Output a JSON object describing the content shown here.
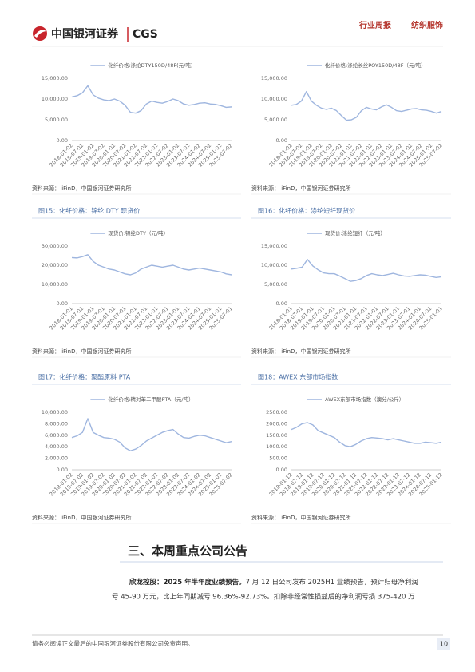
{
  "header": {
    "logo_text": "中国银河证券",
    "logo_code": "CGS",
    "report_type": "行业周报",
    "sector": "纺织服饰"
  },
  "chart_data": [
    {
      "type": "line",
      "series": [
        {
          "name": "化纤价格:涤纶DTY150D/48F(元/吨)",
          "color": "#9fb6df",
          "values": [
            10500,
            10800,
            11500,
            13200,
            11000,
            10200,
            9800,
            9600,
            10000,
            9500,
            8500,
            6800,
            6600,
            7200,
            8800,
            9500,
            9200,
            9000,
            9400,
            10000,
            9600,
            8800,
            8500,
            8700,
            9000,
            9100,
            8800,
            8700,
            8400,
            8000,
            8100
          ]
        }
      ],
      "categories": [
        "2018-01-02",
        null,
        "2018-07-02",
        null,
        "2019-01-02",
        null,
        "2019-07-02",
        null,
        "2020-01-02",
        null,
        "2020-07-02",
        null,
        "2021-01-02",
        null,
        "2021-07-02",
        null,
        "2022-01-02",
        null,
        "2022-07-02",
        null,
        "2023-01-02",
        null,
        "2023-07-02",
        null,
        "2024-01-02",
        null,
        "2024-07-02",
        null,
        "2025-01-02",
        null,
        "2025-07-02"
      ],
      "ylim": [
        0,
        15000
      ],
      "yticks": [
        {
          "value": 0,
          "label": "0.00"
        },
        {
          "value": 5000,
          "label": "5,000.00"
        },
        {
          "value": 10000,
          "label": "10,000.00"
        },
        {
          "value": 15000,
          "label": "15,000.00"
        }
      ],
      "grid": false,
      "source": "资料来源： iFinD，中国银河证券研究所"
    },
    {
      "type": "line",
      "series": [
        {
          "name": "化纤价格:涤纶长丝POY150D/48F（元/吨）",
          "color": "#9fb6df",
          "values": [
            8500,
            8700,
            9500,
            11800,
            9500,
            8500,
            7800,
            7500,
            7800,
            7200,
            6000,
            4900,
            5000,
            5600,
            7200,
            8000,
            7600,
            7400,
            8100,
            8600,
            8000,
            7200,
            7000,
            7300,
            7600,
            7700,
            7400,
            7300,
            7000,
            6600,
            7000
          ]
        }
      ],
      "categories": [
        "2018-01-02",
        null,
        "2018-07-02",
        null,
        "2019-01-02",
        null,
        "2019-07-02",
        null,
        "2020-01-02",
        null,
        "2020-07-02",
        null,
        "2021-01-02",
        null,
        "2021-07-02",
        null,
        "2022-01-02",
        null,
        "2022-07-02",
        null,
        "2023-01-02",
        null,
        "2023-07-02",
        null,
        "2024-01-02",
        null,
        "2024-07-02",
        null,
        "2025-01-02",
        null,
        "2025-07-02"
      ],
      "ylim": [
        0,
        15000
      ],
      "yticks": [
        {
          "value": 0,
          "label": "0.00"
        },
        {
          "value": 5000,
          "label": "5,000.00"
        },
        {
          "value": 10000,
          "label": "10,000.00"
        },
        {
          "value": 15000,
          "label": "15,000.00"
        }
      ],
      "grid": false,
      "source": "资料来源： iFinD，中国银河证券研究所"
    },
    {
      "type": "line",
      "title": "图15：化纤价格：锦纶 DTY 现货价",
      "series": [
        {
          "name": "现货价:锦纶DTY（元/吨）",
          "color": "#9fb6df",
          "values": [
            24000,
            23800,
            24500,
            25500,
            22000,
            20000,
            19000,
            18000,
            17500,
            16500,
            15500,
            15000,
            16000,
            18000,
            19000,
            20000,
            19500,
            19000,
            19500,
            20000,
            19000,
            18000,
            17500,
            18000,
            18500,
            18000,
            17500,
            17000,
            16500,
            15500,
            15000
          ]
        }
      ],
      "categories": [
        "2018-01-01",
        null,
        "2018-07-01",
        null,
        "2019-01-01",
        null,
        "2019-07-01",
        null,
        "2020-01-01",
        null,
        "2020-07-01",
        null,
        "2021-01-01",
        null,
        "2021-07-01",
        null,
        "2022-01-01",
        null,
        "2022-07-01",
        null,
        "2023-01-01",
        null,
        "2023-07-01",
        null,
        "2024-01-01",
        null,
        "2024-07-01",
        null,
        "2025-01-01",
        null,
        "2025-07-01"
      ],
      "ylim": [
        0,
        30000
      ],
      "yticks": [
        {
          "value": 0,
          "label": "0.00"
        },
        {
          "value": 10000,
          "label": "10,000.00"
        },
        {
          "value": 20000,
          "label": "20,000.00"
        },
        {
          "value": 30000,
          "label": "30,000.00"
        }
      ],
      "grid": false,
      "source": "资料来源： iFinD，中国银河证券研究所"
    },
    {
      "type": "line",
      "title": "图16：化纤价格：涤纶短纤现货价",
      "series": [
        {
          "name": "现货价:涤纶短纤（元/吨）",
          "color": "#9fb6df",
          "values": [
            9000,
            9200,
            9500,
            11500,
            9800,
            8800,
            8000,
            7800,
            7800,
            7200,
            6500,
            5800,
            6000,
            6500,
            7300,
            7800,
            7500,
            7300,
            7600,
            7900,
            7500,
            7200,
            7100,
            7300,
            7500,
            7400,
            7100,
            6800,
            7000
          ]
        }
      ],
      "categories": [
        "2018-01-01",
        null,
        "2018-07-01",
        null,
        "2019-01-01",
        null,
        "2019-07-01",
        null,
        "2020-01-01",
        null,
        "2020-07-01",
        null,
        "2021-01-01",
        null,
        "2021-07-01",
        null,
        "2022-01-01",
        null,
        "2022-07-01",
        null,
        "2023-01-01",
        null,
        "2023-07-01",
        null,
        "2024-01-01",
        null,
        "2024-07-01",
        null,
        "2025-01-01"
      ],
      "ylim": [
        0,
        15000
      ],
      "yticks": [
        {
          "value": 0,
          "label": "0.00"
        },
        {
          "value": 5000,
          "label": "5,000.00"
        },
        {
          "value": 10000,
          "label": "10,000.00"
        },
        {
          "value": 15000,
          "label": "15,000.00"
        }
      ],
      "grid": false,
      "source": "资料来源： iFinD，中国银河证券研究所"
    },
    {
      "type": "line",
      "title": "图17：化纤价格：聚酯原料 PTA",
      "series": [
        {
          "name": "化纤价格:精对苯二甲酸PTA（元/吨）",
          "color": "#9fb6df",
          "values": [
            5600,
            5900,
            6500,
            8900,
            6500,
            6000,
            5600,
            5500,
            5300,
            4800,
            3800,
            3300,
            3600,
            4200,
            5000,
            5500,
            6000,
            6500,
            6800,
            7000,
            6200,
            5600,
            5500,
            5800,
            6000,
            5900,
            5600,
            5300,
            5000,
            4700,
            4900
          ]
        }
      ],
      "categories": [
        "2018-01-02",
        null,
        "2018-07-02",
        null,
        "2019-01-02",
        null,
        "2019-07-02",
        null,
        "2020-01-02",
        null,
        "2020-07-02",
        null,
        "2021-01-02",
        null,
        "2021-07-02",
        null,
        "2022-01-02",
        null,
        "2022-07-02",
        null,
        "2023-01-02",
        null,
        "2023-07-02",
        null,
        "2024-01-02",
        null,
        "2024-07-02",
        null,
        "2025-01-02",
        null,
        "2025-07-02"
      ],
      "ylim": [
        0,
        10000
      ],
      "yticks": [
        {
          "value": 0,
          "label": "0.00"
        },
        {
          "value": 2000,
          "label": "2,000.00"
        },
        {
          "value": 4000,
          "label": "4,000.00"
        },
        {
          "value": 6000,
          "label": "6,000.00"
        },
        {
          "value": 8000,
          "label": "8,000.00"
        },
        {
          "value": 10000,
          "label": "10,000.00"
        }
      ],
      "grid": false,
      "source": "资料来源： iFinD，中国银河证券研究所"
    },
    {
      "type": "line",
      "title": "图18：AWEX 东部市场指数",
      "series": [
        {
          "name": "AWEX东部市场指数（澳分/公斤）",
          "color": "#9fb6df",
          "values": [
            1750,
            1850,
            2000,
            2050,
            1950,
            1700,
            1600,
            1500,
            1400,
            1200,
            1050,
            1000,
            1100,
            1250,
            1350,
            1400,
            1380,
            1350,
            1300,
            1350,
            1300,
            1250,
            1200,
            1150,
            1150,
            1200,
            1180,
            1150,
            1200
          ]
        }
      ],
      "categories": [
        "2018-01-12",
        null,
        "2018-07-12",
        null,
        "2019-01-12",
        null,
        "2019-07-12",
        null,
        "2020-01-12",
        null,
        "2020-07-12",
        null,
        "2021-01-12",
        null,
        "2021-07-12",
        null,
        "2022-01-12",
        null,
        "2022-07-12",
        null,
        "2023-01-12",
        null,
        "2023-07-12",
        null,
        "2024-01-12",
        null,
        "2024-07-12",
        null,
        "2025-01-12"
      ],
      "ylim": [
        0,
        2500
      ],
      "yticks": [
        {
          "value": 0,
          "label": "0.00"
        },
        {
          "value": 500,
          "label": "500.00"
        },
        {
          "value": 1000,
          "label": "1000.00"
        },
        {
          "value": 1500,
          "label": "1500.00"
        },
        {
          "value": 2000,
          "label": "2000.00"
        },
        {
          "value": 2500,
          "label": "2500.00"
        }
      ],
      "grid": false,
      "source": "资料来源： iFinD，中国银河证券研究所"
    }
  ],
  "section": {
    "heading": "三、本周重点公司公告",
    "paragraph": {
      "company": "欣龙控股：",
      "headline": "2025 年半年度业绩预告。",
      "line1": "7 月 12 日公司发布 2025H1 业绩预告，预计归母净利润",
      "line2": "亏 45-90 万元，比上年同期减亏 96.36%-92.73%。扣除非经常性损益后的净利润亏损 375-420 万"
    }
  },
  "footer": {
    "disclaimer": "请务必阅读正文最后的中国银河证券股份有限公司免责声明。",
    "page": "10"
  }
}
